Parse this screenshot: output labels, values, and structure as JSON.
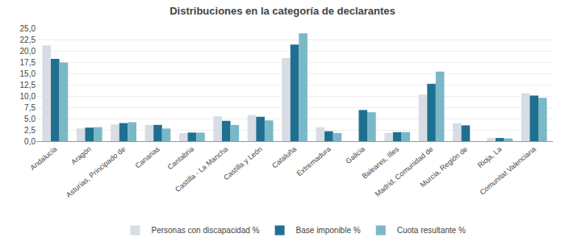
{
  "chart_data": {
    "type": "bar",
    "title": "Distribuciones en la categoría de declarantes",
    "categories": [
      "Andalucía",
      "Aragón",
      "Asturias, Principado de",
      "Canarias",
      "Cantabria",
      "Castilla - La Mancha",
      "Castilla y León",
      "Cataluña",
      "Extremadura",
      "Galicia",
      "Baleares, Illes",
      "Madrid, Comunidad de",
      "Murcia, Región de",
      "Rioja, La",
      "Comunitat Valenciana"
    ],
    "series": [
      {
        "name": "Personas con discapacidad %",
        "color": "#d8dce4",
        "values": [
          21.2,
          2.8,
          3.7,
          3.6,
          1.8,
          5.5,
          5.8,
          18.4,
          3.1,
          0.0,
          1.8,
          10.3,
          4.0,
          0.7,
          10.6
        ]
      },
      {
        "name": "Base imponible %",
        "color": "#1f7090",
        "values": [
          18.2,
          3.0,
          4.0,
          3.6,
          1.9,
          4.5,
          5.4,
          21.4,
          2.2,
          6.9,
          2.0,
          12.7,
          3.5,
          0.7,
          10.1
        ]
      },
      {
        "name": "Cuota resultante %",
        "color": "#7ab8c8",
        "values": [
          17.4,
          3.1,
          4.2,
          2.8,
          1.9,
          3.6,
          4.6,
          23.9,
          1.8,
          6.4,
          2.0,
          15.4,
          0.0,
          0.6,
          9.6
        ]
      }
    ],
    "ylim": [
      0,
      25
    ],
    "yticks": [
      {
        "value": 0.0,
        "label": "0,0"
      },
      {
        "value": 2.5,
        "label": "2,5"
      },
      {
        "value": 5.0,
        "label": "5,0"
      },
      {
        "value": 7.5,
        "label": "7,5"
      },
      {
        "value": 10.0,
        "label": "10,0"
      },
      {
        "value": 12.5,
        "label": "12,5"
      },
      {
        "value": 15.0,
        "label": "15,0"
      },
      {
        "value": 17.5,
        "label": "17,5"
      },
      {
        "value": 20.0,
        "label": "20,0"
      },
      {
        "value": 22.5,
        "label": "22,5"
      },
      {
        "value": 25.0,
        "label": "25,0"
      }
    ],
    "grid": true,
    "legend": "bottom"
  }
}
